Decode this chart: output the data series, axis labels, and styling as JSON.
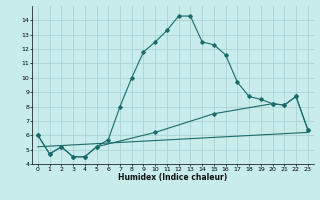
{
  "xlabel": "Humidex (Indice chaleur)",
  "bg_color": "#c8ecec",
  "grid_color": "#aad4d4",
  "line_color": "#1a6b6b",
  "xlim": [
    -0.5,
    23.5
  ],
  "ylim": [
    4,
    15
  ],
  "yticks": [
    4,
    5,
    6,
    7,
    8,
    9,
    10,
    11,
    12,
    13,
    14
  ],
  "xticks": [
    0,
    1,
    2,
    3,
    4,
    5,
    6,
    7,
    8,
    9,
    10,
    11,
    12,
    13,
    14,
    15,
    16,
    17,
    18,
    19,
    20,
    21,
    22,
    23
  ],
  "line1_x": [
    0,
    1,
    2,
    3,
    4,
    5,
    6,
    7,
    8,
    9,
    10,
    11,
    12,
    13,
    14,
    15,
    16,
    17,
    18,
    19,
    20,
    21,
    22,
    23
  ],
  "line1_y": [
    6.0,
    4.7,
    5.2,
    4.5,
    4.5,
    5.2,
    5.7,
    8.0,
    10.0,
    11.8,
    12.5,
    13.3,
    14.3,
    14.3,
    12.5,
    12.3,
    11.6,
    9.7,
    8.7,
    8.5,
    8.2,
    8.1,
    8.7,
    6.4
  ],
  "line2_x": [
    0,
    1,
    2,
    3,
    4,
    5,
    10,
    15,
    20,
    21,
    22,
    23
  ],
  "line2_y": [
    6.0,
    4.7,
    5.2,
    4.5,
    4.5,
    5.2,
    6.2,
    7.5,
    8.2,
    8.1,
    8.7,
    6.4
  ],
  "line3_x": [
    0,
    23
  ],
  "line3_y": [
    5.2,
    6.2
  ]
}
